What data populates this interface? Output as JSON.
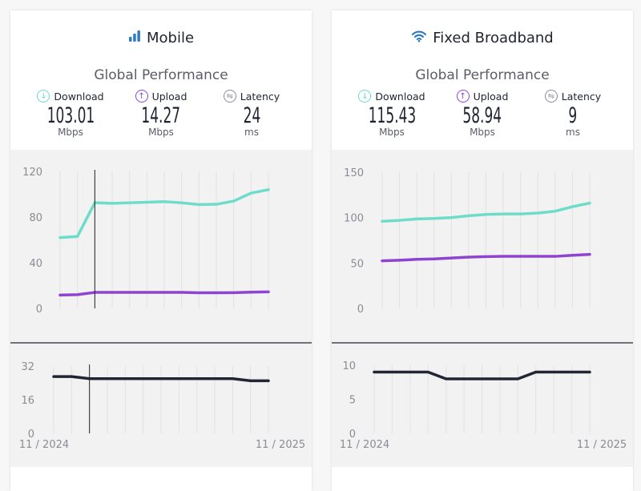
{
  "panels": [
    {
      "title": "Mobile",
      "icon": "signal-bars-icon",
      "subtitle": "Global Performance",
      "metrics": [
        {
          "label": "Download",
          "value": "103.01",
          "unit": "Mbps"
        },
        {
          "label": "Upload",
          "value": "14.27",
          "unit": "Mbps"
        },
        {
          "label": "Latency",
          "value": "24",
          "unit": "ms"
        }
      ]
    },
    {
      "title": "Fixed Broadband",
      "icon": "wifi-icon",
      "subtitle": "Global Performance",
      "metrics": [
        {
          "label": "Download",
          "value": "115.43",
          "unit": "Mbps"
        },
        {
          "label": "Upload",
          "value": "58.94",
          "unit": "Mbps"
        },
        {
          "label": "Latency",
          "value": "9",
          "unit": "ms"
        }
      ]
    }
  ],
  "colors": {
    "download": "#6ddcc8",
    "upload": "#8e44d0",
    "latency": "#222633",
    "latency_icon": "#8b8c93"
  },
  "chart_data": [
    {
      "type": "line",
      "panel": "Mobile",
      "ylim": [
        0,
        120
      ],
      "yticks": [
        "0",
        "40",
        "80",
        "120"
      ],
      "hover_index": 2,
      "series": [
        {
          "key": "download",
          "values": [
            62,
            63,
            92.6,
            92,
            92.5,
            93,
            93.5,
            92.5,
            91,
            91.2,
            94,
            101,
            104
          ]
        },
        {
          "key": "upload",
          "values": [
            11.7,
            12,
            14,
            14,
            14,
            14,
            14,
            14,
            13.7,
            13.7,
            13.8,
            14.2,
            14.5
          ]
        }
      ]
    },
    {
      "type": "line",
      "panel": "Mobile",
      "ylim": [
        0,
        32
      ],
      "yticks": [
        "0",
        "16",
        "32"
      ],
      "xticks": [
        "11 / 2024",
        "11 / 2025"
      ],
      "hover_index": 2,
      "series": [
        {
          "key": "latency",
          "values": [
            27,
            27,
            26,
            26,
            26,
            26,
            26,
            26,
            26,
            26,
            26,
            25,
            25
          ]
        }
      ]
    },
    {
      "type": "line",
      "panel": "Fixed Broadband",
      "ylim": [
        0,
        150
      ],
      "yticks": [
        "0",
        "50",
        "100",
        "150"
      ],
      "series": [
        {
          "key": "download",
          "values": [
            96,
            97,
            98.5,
            99,
            100,
            102,
            103.5,
            104,
            104,
            105,
            107,
            112,
            116
          ]
        },
        {
          "key": "upload",
          "values": [
            52.4,
            53,
            54,
            54.5,
            55.5,
            56.5,
            57,
            57.3,
            57.3,
            57.3,
            57.3,
            58.5,
            59.5
          ]
        }
      ]
    },
    {
      "type": "line",
      "panel": "Fixed Broadband",
      "ylim": [
        0,
        10
      ],
      "yticks": [
        "0",
        "5",
        "10"
      ],
      "xticks": [
        "11 / 2024",
        "11 / 2025"
      ],
      "series": [
        {
          "key": "latency",
          "values": [
            9,
            9,
            9,
            9,
            8,
            8,
            8,
            8,
            8,
            9,
            9,
            9,
            9
          ]
        }
      ]
    }
  ]
}
